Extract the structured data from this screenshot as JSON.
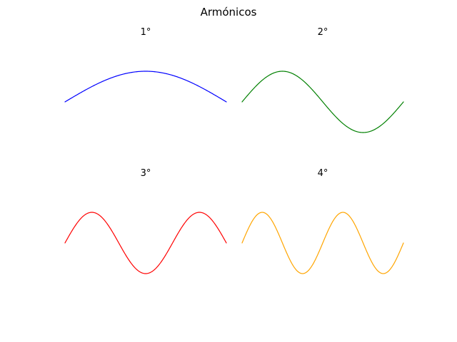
{
  "title": "Armónicos",
  "chart_data": [
    {
      "type": "line",
      "title": "1°",
      "function": "sin(1·x)",
      "harmonic": 1,
      "xlim": [
        0,
        3.14159
      ],
      "ylim": [
        -1,
        1
      ],
      "axis_visible": false,
      "grid": false,
      "series": [
        {
          "color": "#0000ff",
          "x": [
            0,
            0.3927,
            0.7854,
            1.1781,
            1.5708,
            1.9635,
            2.3562,
            2.7489,
            3.1416
          ],
          "y": [
            0,
            0.383,
            0.707,
            0.924,
            1,
            0.924,
            0.707,
            0.383,
            0
          ]
        }
      ]
    },
    {
      "type": "line",
      "title": "2°",
      "function": "sin(2·x)",
      "harmonic": 2,
      "xlim": [
        0,
        3.14159
      ],
      "ylim": [
        -1,
        1
      ],
      "axis_visible": false,
      "grid": false,
      "series": [
        {
          "color": "#008000",
          "x": [
            0,
            0.3927,
            0.7854,
            1.1781,
            1.5708,
            1.9635,
            2.3562,
            2.7489,
            3.1416
          ],
          "y": [
            0,
            0.707,
            1,
            0.707,
            0,
            -0.707,
            -1,
            -0.707,
            0
          ]
        }
      ]
    },
    {
      "type": "line",
      "title": "3°",
      "function": "sin(3·x)",
      "harmonic": 3,
      "xlim": [
        0,
        3.14159
      ],
      "ylim": [
        -1,
        1
      ],
      "axis_visible": false,
      "grid": false,
      "series": [
        {
          "color": "#ff0000",
          "x": [
            0,
            0.5236,
            1.0472,
            1.5708,
            2.0944,
            2.618,
            3.1416
          ],
          "y": [
            0,
            1,
            0,
            -1,
            0,
            1,
            0
          ]
        }
      ]
    },
    {
      "type": "line",
      "title": "4°",
      "function": "sin(4·x)",
      "harmonic": 4,
      "xlim": [
        0,
        3.14159
      ],
      "ylim": [
        -1,
        1
      ],
      "axis_visible": false,
      "grid": false,
      "series": [
        {
          "color": "#ffa500",
          "x": [
            0,
            0.3927,
            0.7854,
            1.1781,
            1.5708,
            1.9635,
            2.3562,
            2.7489,
            3.1416
          ],
          "y": [
            0,
            1,
            0,
            -1,
            0,
            1,
            0,
            -1,
            0
          ]
        }
      ]
    }
  ]
}
